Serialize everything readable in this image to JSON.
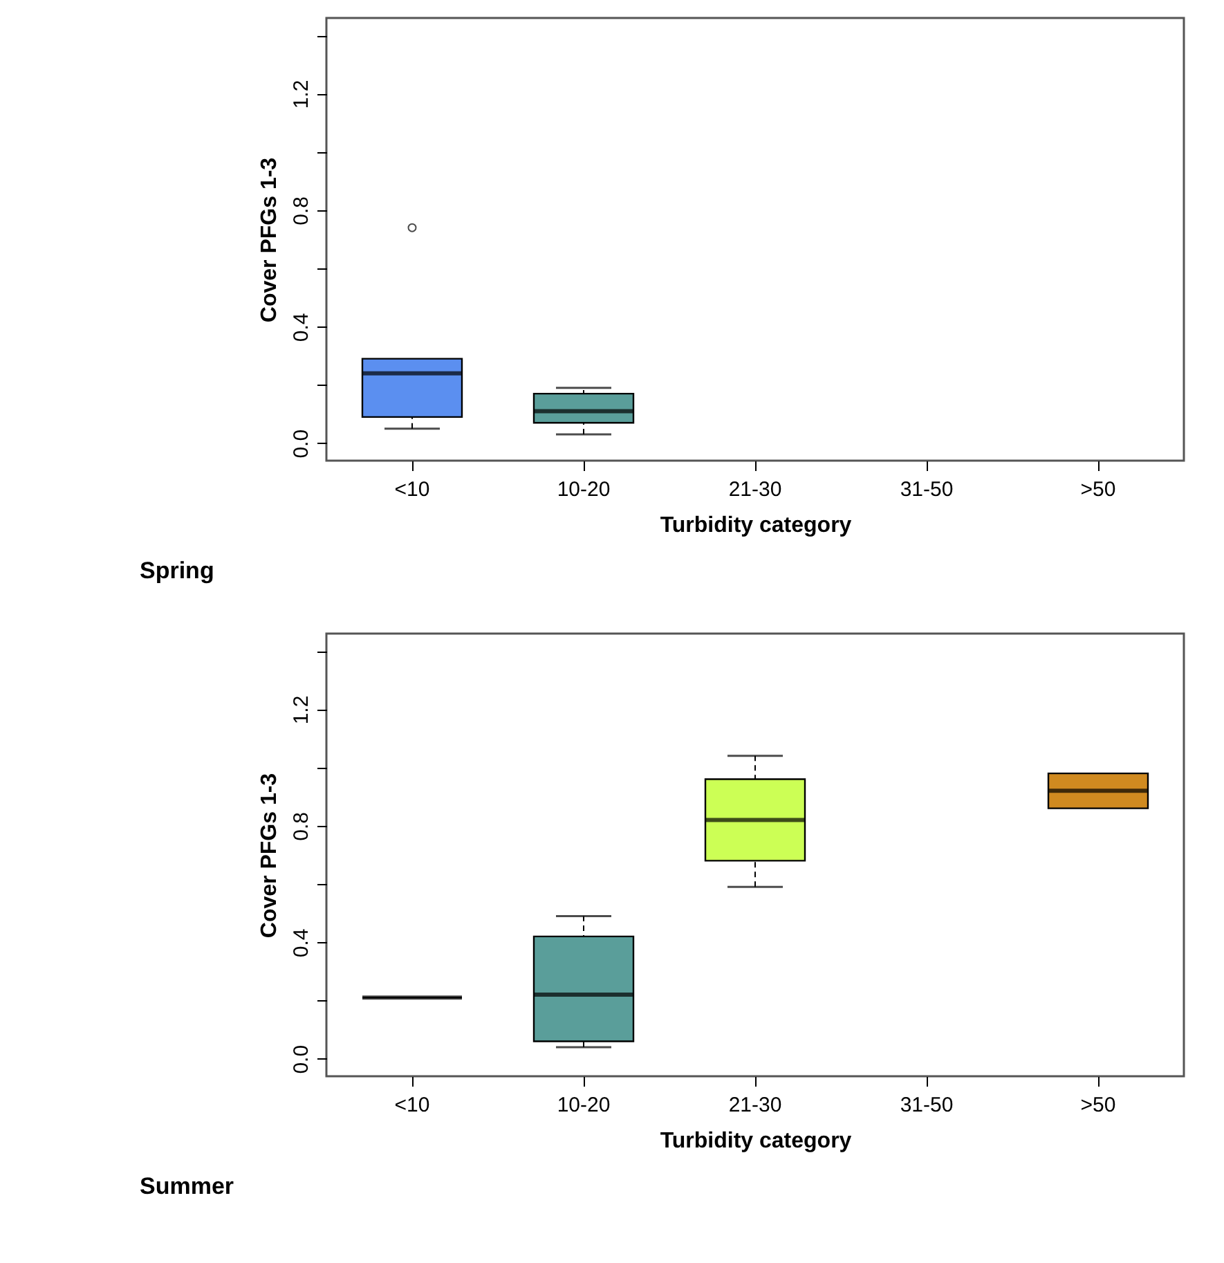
{
  "chart_data": [
    {
      "type": "box",
      "title": "Spring",
      "xlabel": "Turbidity category",
      "ylabel": "Cover PFGs 1-3",
      "categories": [
        "<10",
        "10-20",
        "21-30",
        "31-50",
        ">50"
      ],
      "boxes": [
        {
          "low": 0.05,
          "q1": 0.09,
          "median": 0.24,
          "q3": 0.29,
          "high": 0.29,
          "outliers": [
            0.74
          ]
        },
        {
          "low": 0.03,
          "q1": 0.07,
          "median": 0.11,
          "q3": 0.17,
          "high": 0.19
        },
        null,
        null,
        null
      ],
      "colors": [
        "#5b8ff0",
        "#5a9e9a",
        null,
        null,
        null
      ],
      "ylim": [
        -0.06,
        1.46
      ],
      "yticks": [
        {
          "value": 0,
          "label": "0.0"
        },
        {
          "value": 0.2,
          "label": null
        },
        0.4,
        {
          "value": 0.6,
          "label": null
        },
        0.8,
        {
          "value": 1.0,
          "label": null
        },
        1.2,
        {
          "value": 1.4,
          "label": null
        }
      ],
      "grid": false
    },
    {
      "type": "box",
      "title": "Summer",
      "xlabel": "Turbidity category",
      "ylabel": "Cover PFGs 1-3",
      "categories": [
        "<10",
        "10-20",
        "21-30",
        "31-50",
        ">50"
      ],
      "boxes": [
        {
          "low": 0.21,
          "q1": 0.21,
          "median": 0.21,
          "q3": 0.21,
          "high": 0.21
        },
        {
          "low": 0.04,
          "q1": 0.06,
          "median": 0.22,
          "q3": 0.42,
          "high": 0.49
        },
        {
          "low": 0.59,
          "q1": 0.68,
          "median": 0.82,
          "q3": 0.96,
          "high": 1.04
        },
        null,
        {
          "low": 0.86,
          "q1": 0.86,
          "median": 0.92,
          "q3": 0.98,
          "high": 0.98
        }
      ],
      "colors": [
        null,
        "#5a9e9a",
        "#ccff55",
        null,
        "#d08a20"
      ],
      "ylim": [
        -0.06,
        1.46
      ],
      "yticks": [
        {
          "value": 0,
          "label": "0.0"
        },
        {
          "value": 0.2,
          "label": null
        },
        0.4,
        {
          "value": 0.6,
          "label": null
        },
        0.8,
        {
          "value": 1.0,
          "label": null
        },
        1.2,
        {
          "value": 1.4,
          "label": null
        }
      ],
      "grid": false
    }
  ]
}
